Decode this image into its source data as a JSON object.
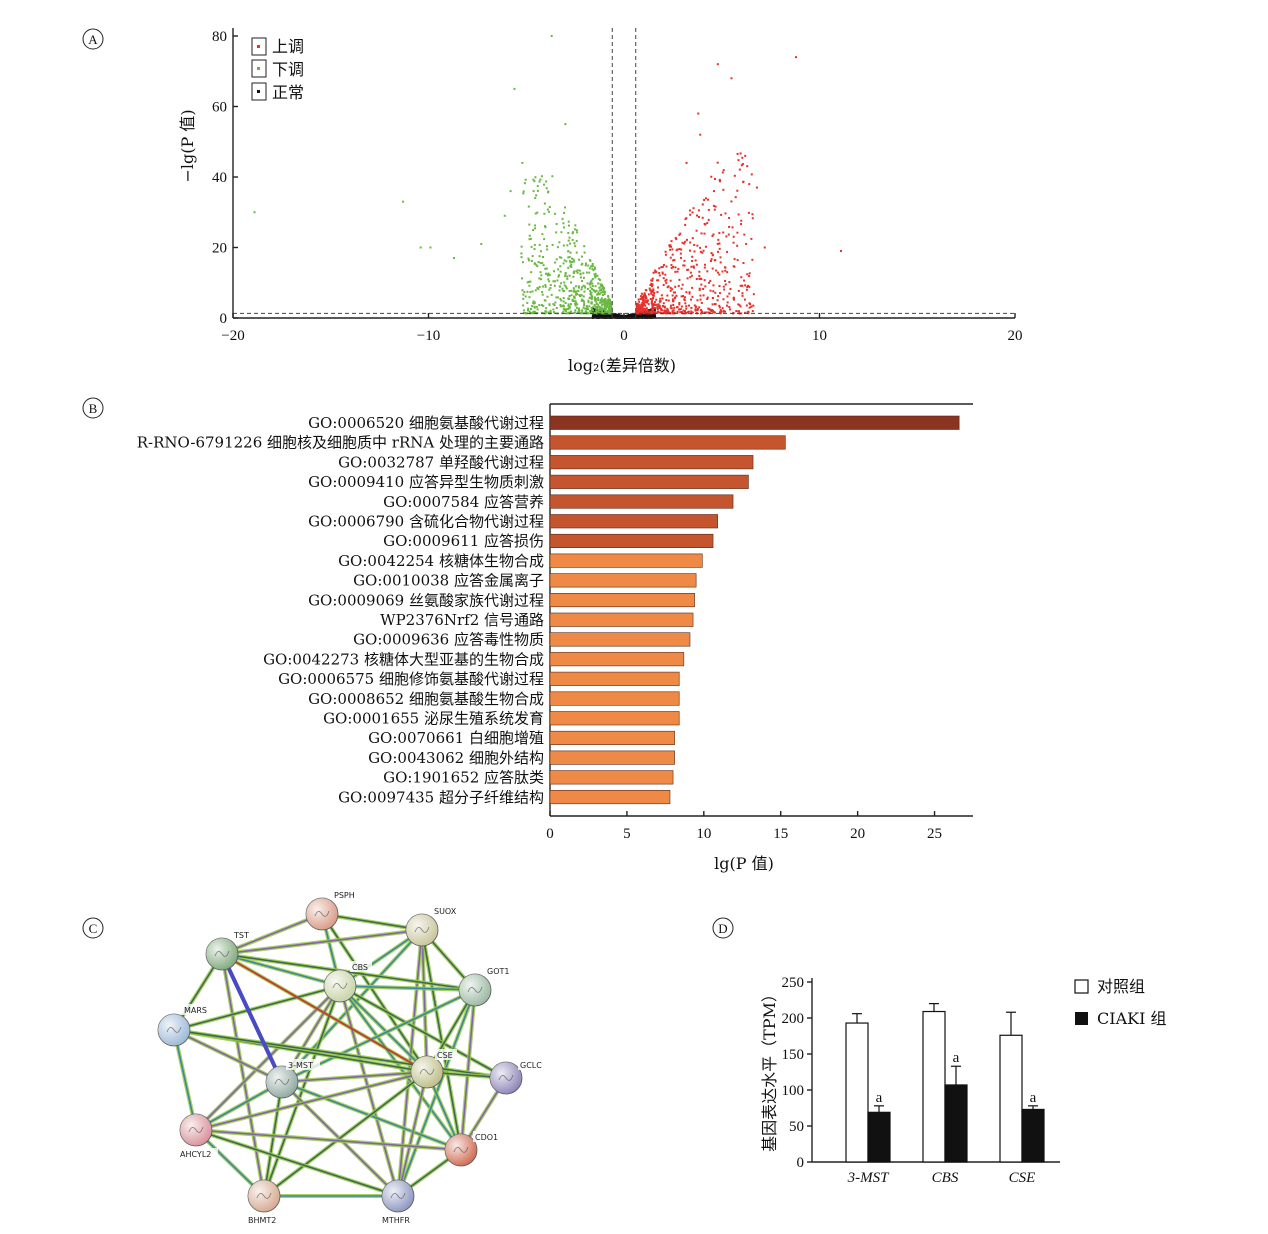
{
  "colors": {
    "up": "#e8302a",
    "down": "#6ab843",
    "normal": "#111111",
    "bar_dark": "#8b3422",
    "bar_mid": "#c4552e",
    "bar_light": "#ee8a45"
  },
  "chart_data": [
    {
      "panel": "A",
      "type": "scatter",
      "subtype": "volcano",
      "xlabel": "log₂(差异倍数)",
      "ylabel": "−lg(P 值)",
      "xlim": [
        -20,
        20
      ],
      "ylim": [
        0,
        80
      ],
      "xticks": [
        -20,
        -10,
        0,
        10,
        20
      ],
      "yticks": [
        0,
        20,
        40,
        60,
        80
      ],
      "threshold_x": [
        -0.6,
        0.6
      ],
      "threshold_y": 1.3,
      "legend": [
        {
          "label": "上调",
          "series": "up"
        },
        {
          "label": "下调",
          "series": "down"
        },
        {
          "label": "正常",
          "series": "normal"
        }
      ],
      "outliers_up": [
        [
          8.8,
          74
        ],
        [
          4.8,
          72
        ],
        [
          5.5,
          68
        ],
        [
          3.8,
          58
        ],
        [
          6.2,
          46
        ],
        [
          3.2,
          44
        ],
        [
          6.8,
          37
        ],
        [
          11.1,
          19
        ],
        [
          4.6,
          36
        ],
        [
          7.2,
          20
        ],
        [
          3.9,
          52
        ]
      ],
      "outliers_down": [
        [
          -3.7,
          80
        ],
        [
          -5.6,
          65
        ],
        [
          -3.0,
          55
        ],
        [
          -5.2,
          44
        ],
        [
          -18.9,
          30
        ],
        [
          -11.3,
          33
        ],
        [
          -10.4,
          20
        ],
        [
          -9.9,
          20
        ],
        [
          -7.3,
          21
        ],
        [
          -5.8,
          36
        ],
        [
          -6.1,
          29
        ],
        [
          -8.7,
          17
        ]
      ]
    },
    {
      "panel": "B",
      "type": "bar",
      "orientation": "horizontal",
      "xlabel": "lg(P 值)",
      "xlim": [
        0,
        27.5
      ],
      "xticks": [
        0,
        5,
        10,
        15,
        20,
        25
      ],
      "categories": [
        "GO:0006520 细胞氨基酸代谢过程",
        "R-RNO-6791226 细胞核及细胞质中 rRNA 处理的主要通路",
        "GO:0032787 单羟酸代谢过程",
        "GO:0009410 应答异型生物质刺激",
        "GO:0007584 应答营养",
        "GO:0006790 含硫化合物代谢过程",
        "GO:0009611 应答损伤",
        "GO:0042254 核糖体生物合成",
        "GO:0010038 应答金属离子",
        "GO:0009069 丝氨酸家族代谢过程",
        "WP2376Nrf2 信号通路",
        "GO:0009636 应答毒性物质",
        "GO:0042273 核糖体大型亚基的生物合成",
        "GO:0006575 细胞修饰氨基酸代谢过程",
        "GO:0008652 细胞氨基酸生物合成",
        "GO:0001655 泌尿生殖系统发育",
        "GO:0070661 白细胞增殖",
        "GO:0043062 细胞外结构",
        "GO:1901652 应答肽类",
        "GO:0097435 超分子纤维结构"
      ],
      "values": [
        26.6,
        15.3,
        13.2,
        12.9,
        11.9,
        10.9,
        10.6,
        9.9,
        9.5,
        9.4,
        9.3,
        9.1,
        8.7,
        8.4,
        8.4,
        8.4,
        8.1,
        8.1,
        8.0,
        7.8
      ]
    },
    {
      "panel": "C",
      "type": "network",
      "nodes": [
        "PSPH",
        "SUOX",
        "TST",
        "CBS",
        "GOT1",
        "MARS",
        "3-MST",
        "CSE",
        "GCLC",
        "AHCYL2",
        "CDO1",
        "BHMT2",
        "MTHFR"
      ]
    },
    {
      "panel": "D",
      "type": "bar",
      "ylabel": "基因表达水平（TPM）",
      "ylim": [
        0,
        250
      ],
      "yticks": [
        0,
        50,
        100,
        150,
        200,
        250
      ],
      "categories": [
        "3-MST",
        "CBS",
        "CSE"
      ],
      "series": [
        {
          "name": "对照组",
          "values": [
            193,
            209,
            176
          ],
          "errors": [
            13,
            11,
            32
          ]
        },
        {
          "name": "CIAKI 组",
          "values": [
            69,
            107,
            73
          ],
          "errors": [
            9,
            26,
            5
          ]
        }
      ],
      "annotation": "a"
    }
  ],
  "panel_labels": {
    "a": "A",
    "b": "B",
    "c": "C",
    "d": "D"
  },
  "legend_a": {
    "up": "上调",
    "down": "下调",
    "normal": "正常"
  },
  "legend_d": {
    "control": "对照组",
    "ciaki": "CIAKI 组"
  },
  "axis_text": {
    "a_x": "log₂(差异倍数)",
    "a_y": "−lg(P 值)",
    "b_x": "lg(P 值)",
    "d_y": "基因表达水平（TPM）"
  }
}
